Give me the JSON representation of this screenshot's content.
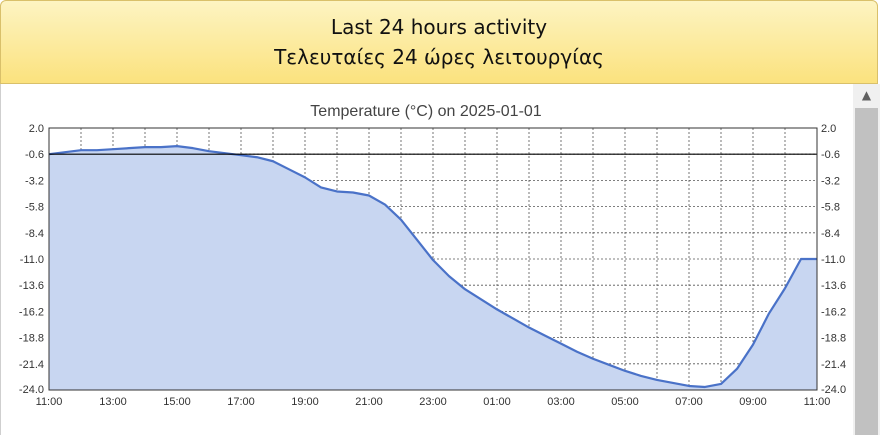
{
  "header": {
    "title_en": "Last 24 hours activity",
    "title_el": "Τελευταίες 24 ώρες λειτουργίας"
  },
  "chart_data": {
    "type": "area",
    "title": "Temperature (°C) on 2025-01-01",
    "xlabel": "",
    "ylabel": "",
    "x_ticks": [
      "11:00",
      "13:00",
      "15:00",
      "17:00",
      "19:00",
      "21:00",
      "23:00",
      "01:00",
      "03:00",
      "05:00",
      "07:00",
      "09:00",
      "11:00"
    ],
    "y_ticks": [
      "2.0",
      "-0.6",
      "-3.2",
      "-5.8",
      "-8.4",
      "-11.0",
      "-13.6",
      "-16.2",
      "-18.8",
      "-21.4",
      "-24.0"
    ],
    "ylim": [
      -24.0,
      2.0
    ],
    "xlim_hours": [
      0,
      24
    ],
    "reference_line": -0.6,
    "grid": true,
    "colors": {
      "line": "#4a72c8",
      "fill": "#c8d6f1",
      "grid": "#555555",
      "reference": "#000000"
    },
    "series": [
      {
        "x": [
          0,
          0.5,
          1,
          1.5,
          2,
          2.5,
          3,
          3.5,
          4,
          4.5,
          5,
          5.5,
          6,
          6.5,
          7,
          7.5,
          8,
          8.5,
          9,
          9.5,
          10,
          10.5,
          11,
          11.5,
          12,
          12.5,
          13,
          13.5,
          14,
          14.5,
          15,
          15.5,
          16,
          16.5,
          17,
          17.5,
          18,
          18.5,
          19,
          19.5,
          20,
          20.5,
          21,
          21.5,
          22,
          22.5,
          23,
          23.5,
          24
        ],
        "y": [
          -0.6,
          -0.4,
          -0.2,
          -0.2,
          -0.1,
          0.0,
          0.1,
          0.1,
          0.2,
          0.0,
          -0.3,
          -0.5,
          -0.7,
          -0.9,
          -1.3,
          -2.1,
          -2.9,
          -3.9,
          -4.3,
          -4.4,
          -4.7,
          -5.6,
          -7.1,
          -9.1,
          -11.1,
          -12.7,
          -14.0,
          -15.0,
          -16.0,
          -16.9,
          -17.8,
          -18.6,
          -19.4,
          -20.2,
          -20.9,
          -21.5,
          -22.1,
          -22.6,
          -23.0,
          -23.3,
          -23.6,
          -23.7,
          -23.4,
          -21.9,
          -19.5,
          -16.4,
          -13.9,
          -11.0,
          -11.0
        ]
      }
    ]
  }
}
